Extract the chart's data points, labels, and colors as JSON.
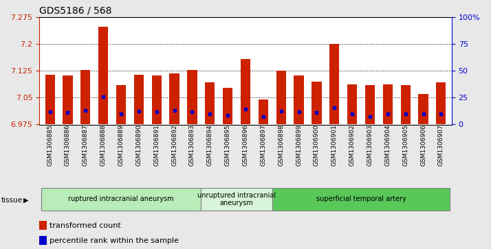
{
  "title": "GDS5186 / 568",
  "samples": [
    "GSM1306885",
    "GSM1306886",
    "GSM1306887",
    "GSM1306888",
    "GSM1306889",
    "GSM1306890",
    "GSM1306891",
    "GSM1306892",
    "GSM1306893",
    "GSM1306894",
    "GSM1306895",
    "GSM1306896",
    "GSM1306897",
    "GSM1306898",
    "GSM1306899",
    "GSM1306900",
    "GSM1306901",
    "GSM1306902",
    "GSM1306903",
    "GSM1306904",
    "GSM1306905",
    "GSM1306906",
    "GSM1306907"
  ],
  "bar_values": [
    7.115,
    7.112,
    7.128,
    7.248,
    7.085,
    7.115,
    7.112,
    7.118,
    7.128,
    7.093,
    7.078,
    7.158,
    7.045,
    7.125,
    7.112,
    7.095,
    7.2,
    7.088,
    7.086,
    7.088,
    7.086,
    7.06,
    7.093
  ],
  "percentile_values": [
    7.01,
    7.008,
    7.015,
    7.052,
    7.005,
    7.012,
    7.01,
    7.015,
    7.01,
    7.004,
    7.0,
    7.018,
    6.997,
    7.012,
    7.01,
    7.008,
    7.022,
    7.004,
    6.998,
    7.004,
    7.004,
    7.004,
    7.004
  ],
  "groups": [
    {
      "label": "ruptured intracranial aneurysm",
      "start": 0,
      "end": 9,
      "color": "#b8ecb8"
    },
    {
      "label": "unruptured intracranial\naneurysm",
      "start": 9,
      "end": 13,
      "color": "#d8f4d8"
    },
    {
      "label": "superficial temporal artery",
      "start": 13,
      "end": 23,
      "color": "#58c858"
    }
  ],
  "ylim": [
    6.975,
    7.275
  ],
  "yticks": [
    6.975,
    7.05,
    7.125,
    7.2,
    7.275
  ],
  "ytick_labels": [
    "6.975",
    "7.05",
    "7.125",
    "7.2",
    "7.275"
  ],
  "right_yticks": [
    0,
    25,
    50,
    75,
    100
  ],
  "right_ytick_labels": [
    "0",
    "25",
    "50",
    "75",
    "100%"
  ],
  "bar_color": "#cc2200",
  "dot_color": "#0000cc",
  "fig_bg": "#e8e8e8",
  "plot_bg": "#ffffff",
  "grid_lines": [
    7.05,
    7.125,
    7.2
  ]
}
